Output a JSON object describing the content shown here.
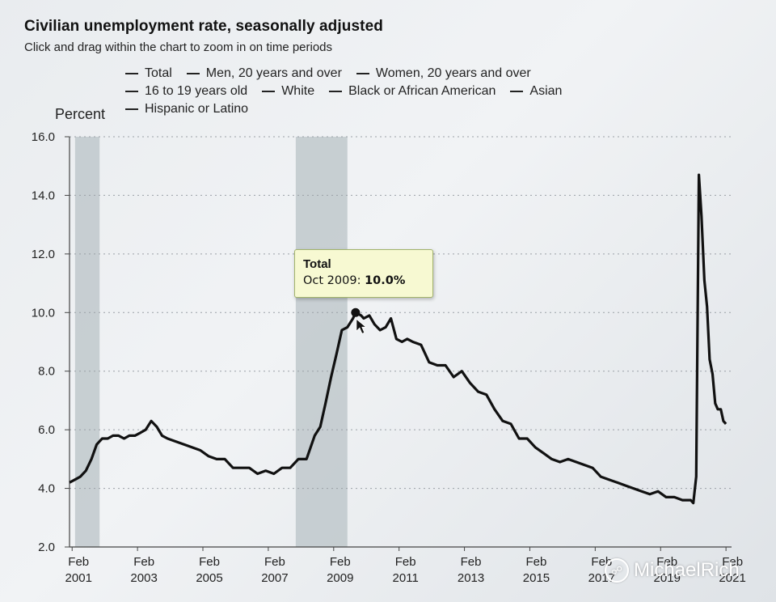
{
  "header": {
    "title": "Civilian unemployment rate, seasonally adjusted",
    "subtitle": "Click and drag within the chart to zoom in on time periods"
  },
  "legend": {
    "rows": [
      [
        "Total",
        "Men, 20 years and over",
        "Women, 20 years and over"
      ],
      [
        "16 to 19 years old",
        "White",
        "Black or African American",
        "Asian"
      ],
      [
        "Hispanic or Latino"
      ]
    ]
  },
  "tooltip": {
    "series": "Total",
    "label": "Oct 2009:",
    "value": "10.0%"
  },
  "watermark": {
    "text": "MichaelRich"
  },
  "chart_data": {
    "type": "line",
    "title": "Civilian unemployment rate, seasonally adjusted",
    "ylabel": "Percent",
    "ylim": [
      2.0,
      16.0
    ],
    "y_ticks": [
      "2.0",
      "4.0",
      "6.0",
      "8.0",
      "10.0",
      "12.0",
      "14.0",
      "16.0"
    ],
    "x_ticks": [
      {
        "month": "Feb",
        "year": "2001",
        "t": 2001.08
      },
      {
        "month": "Feb",
        "year": "2003",
        "t": 2003.08
      },
      {
        "month": "Feb",
        "year": "2005",
        "t": 2005.08
      },
      {
        "month": "Feb",
        "year": "2007",
        "t": 2007.08
      },
      {
        "month": "Feb",
        "year": "2009",
        "t": 2009.08
      },
      {
        "month": "Feb",
        "year": "2011",
        "t": 2011.08
      },
      {
        "month": "Feb",
        "year": "2013",
        "t": 2013.08
      },
      {
        "month": "Feb",
        "year": "2015",
        "t": 2015.08
      },
      {
        "month": "Feb",
        "year": "2017",
        "t": 2017.08
      },
      {
        "month": "Feb",
        "year": "2019",
        "t": 2019.08
      },
      {
        "month": "Feb",
        "year": "2021",
        "t": 2021.08
      }
    ],
    "xlim": [
      2001.0,
      2021.25
    ],
    "grid": true,
    "recessions": [
      [
        2001.17,
        2001.92
      ],
      [
        2007.92,
        2009.5
      ]
    ],
    "series": [
      {
        "name": "Total",
        "color": "#111111",
        "points": [
          [
            2001.0,
            4.2
          ],
          [
            2001.17,
            4.3
          ],
          [
            2001.33,
            4.4
          ],
          [
            2001.5,
            4.6
          ],
          [
            2001.67,
            5.0
          ],
          [
            2001.83,
            5.5
          ],
          [
            2002.0,
            5.7
          ],
          [
            2002.17,
            5.7
          ],
          [
            2002.33,
            5.8
          ],
          [
            2002.5,
            5.8
          ],
          [
            2002.67,
            5.7
          ],
          [
            2002.83,
            5.8
          ],
          [
            2003.0,
            5.8
          ],
          [
            2003.17,
            5.9
          ],
          [
            2003.33,
            6.0
          ],
          [
            2003.5,
            6.3
          ],
          [
            2003.67,
            6.1
          ],
          [
            2003.83,
            5.8
          ],
          [
            2004.0,
            5.7
          ],
          [
            2004.25,
            5.6
          ],
          [
            2004.5,
            5.5
          ],
          [
            2004.75,
            5.4
          ],
          [
            2005.0,
            5.3
          ],
          [
            2005.25,
            5.1
          ],
          [
            2005.5,
            5.0
          ],
          [
            2005.75,
            5.0
          ],
          [
            2006.0,
            4.7
          ],
          [
            2006.25,
            4.7
          ],
          [
            2006.5,
            4.7
          ],
          [
            2006.75,
            4.5
          ],
          [
            2007.0,
            4.6
          ],
          [
            2007.25,
            4.5
          ],
          [
            2007.5,
            4.7
          ],
          [
            2007.75,
            4.7
          ],
          [
            2008.0,
            5.0
          ],
          [
            2008.25,
            5.0
          ],
          [
            2008.5,
            5.8
          ],
          [
            2008.67,
            6.1
          ],
          [
            2008.83,
            6.9
          ],
          [
            2009.0,
            7.8
          ],
          [
            2009.17,
            8.6
          ],
          [
            2009.33,
            9.4
          ],
          [
            2009.5,
            9.5
          ],
          [
            2009.67,
            9.8
          ],
          [
            2009.75,
            10.0
          ],
          [
            2009.92,
            9.9
          ],
          [
            2010.0,
            9.8
          ],
          [
            2010.17,
            9.9
          ],
          [
            2010.33,
            9.6
          ],
          [
            2010.5,
            9.4
          ],
          [
            2010.67,
            9.5
          ],
          [
            2010.83,
            9.8
          ],
          [
            2011.0,
            9.1
          ],
          [
            2011.17,
            9.0
          ],
          [
            2011.33,
            9.1
          ],
          [
            2011.5,
            9.0
          ],
          [
            2011.75,
            8.9
          ],
          [
            2012.0,
            8.3
          ],
          [
            2012.25,
            8.2
          ],
          [
            2012.5,
            8.2
          ],
          [
            2012.75,
            7.8
          ],
          [
            2013.0,
            8.0
          ],
          [
            2013.25,
            7.6
          ],
          [
            2013.5,
            7.3
          ],
          [
            2013.75,
            7.2
          ],
          [
            2014.0,
            6.7
          ],
          [
            2014.25,
            6.3
          ],
          [
            2014.5,
            6.2
          ],
          [
            2014.75,
            5.7
          ],
          [
            2015.0,
            5.7
          ],
          [
            2015.25,
            5.4
          ],
          [
            2015.5,
            5.2
          ],
          [
            2015.75,
            5.0
          ],
          [
            2016.0,
            4.9
          ],
          [
            2016.25,
            5.0
          ],
          [
            2016.5,
            4.9
          ],
          [
            2016.75,
            4.8
          ],
          [
            2017.0,
            4.7
          ],
          [
            2017.25,
            4.4
          ],
          [
            2017.5,
            4.3
          ],
          [
            2017.75,
            4.2
          ],
          [
            2018.0,
            4.1
          ],
          [
            2018.25,
            4.0
          ],
          [
            2018.5,
            3.9
          ],
          [
            2018.75,
            3.8
          ],
          [
            2019.0,
            3.9
          ],
          [
            2019.25,
            3.7
          ],
          [
            2019.5,
            3.7
          ],
          [
            2019.75,
            3.6
          ],
          [
            2020.0,
            3.6
          ],
          [
            2020.08,
            3.5
          ],
          [
            2020.17,
            4.4
          ],
          [
            2020.25,
            14.7
          ],
          [
            2020.33,
            13.3
          ],
          [
            2020.42,
            11.1
          ],
          [
            2020.5,
            10.2
          ],
          [
            2020.58,
            8.4
          ],
          [
            2020.67,
            7.9
          ],
          [
            2020.75,
            6.9
          ],
          [
            2020.83,
            6.7
          ],
          [
            2020.92,
            6.7
          ],
          [
            2021.0,
            6.3
          ],
          [
            2021.08,
            6.2
          ]
        ]
      }
    ],
    "highlight": {
      "series": "Total",
      "date": "Oct 2009",
      "t": 2009.75,
      "value": 10.0
    }
  }
}
